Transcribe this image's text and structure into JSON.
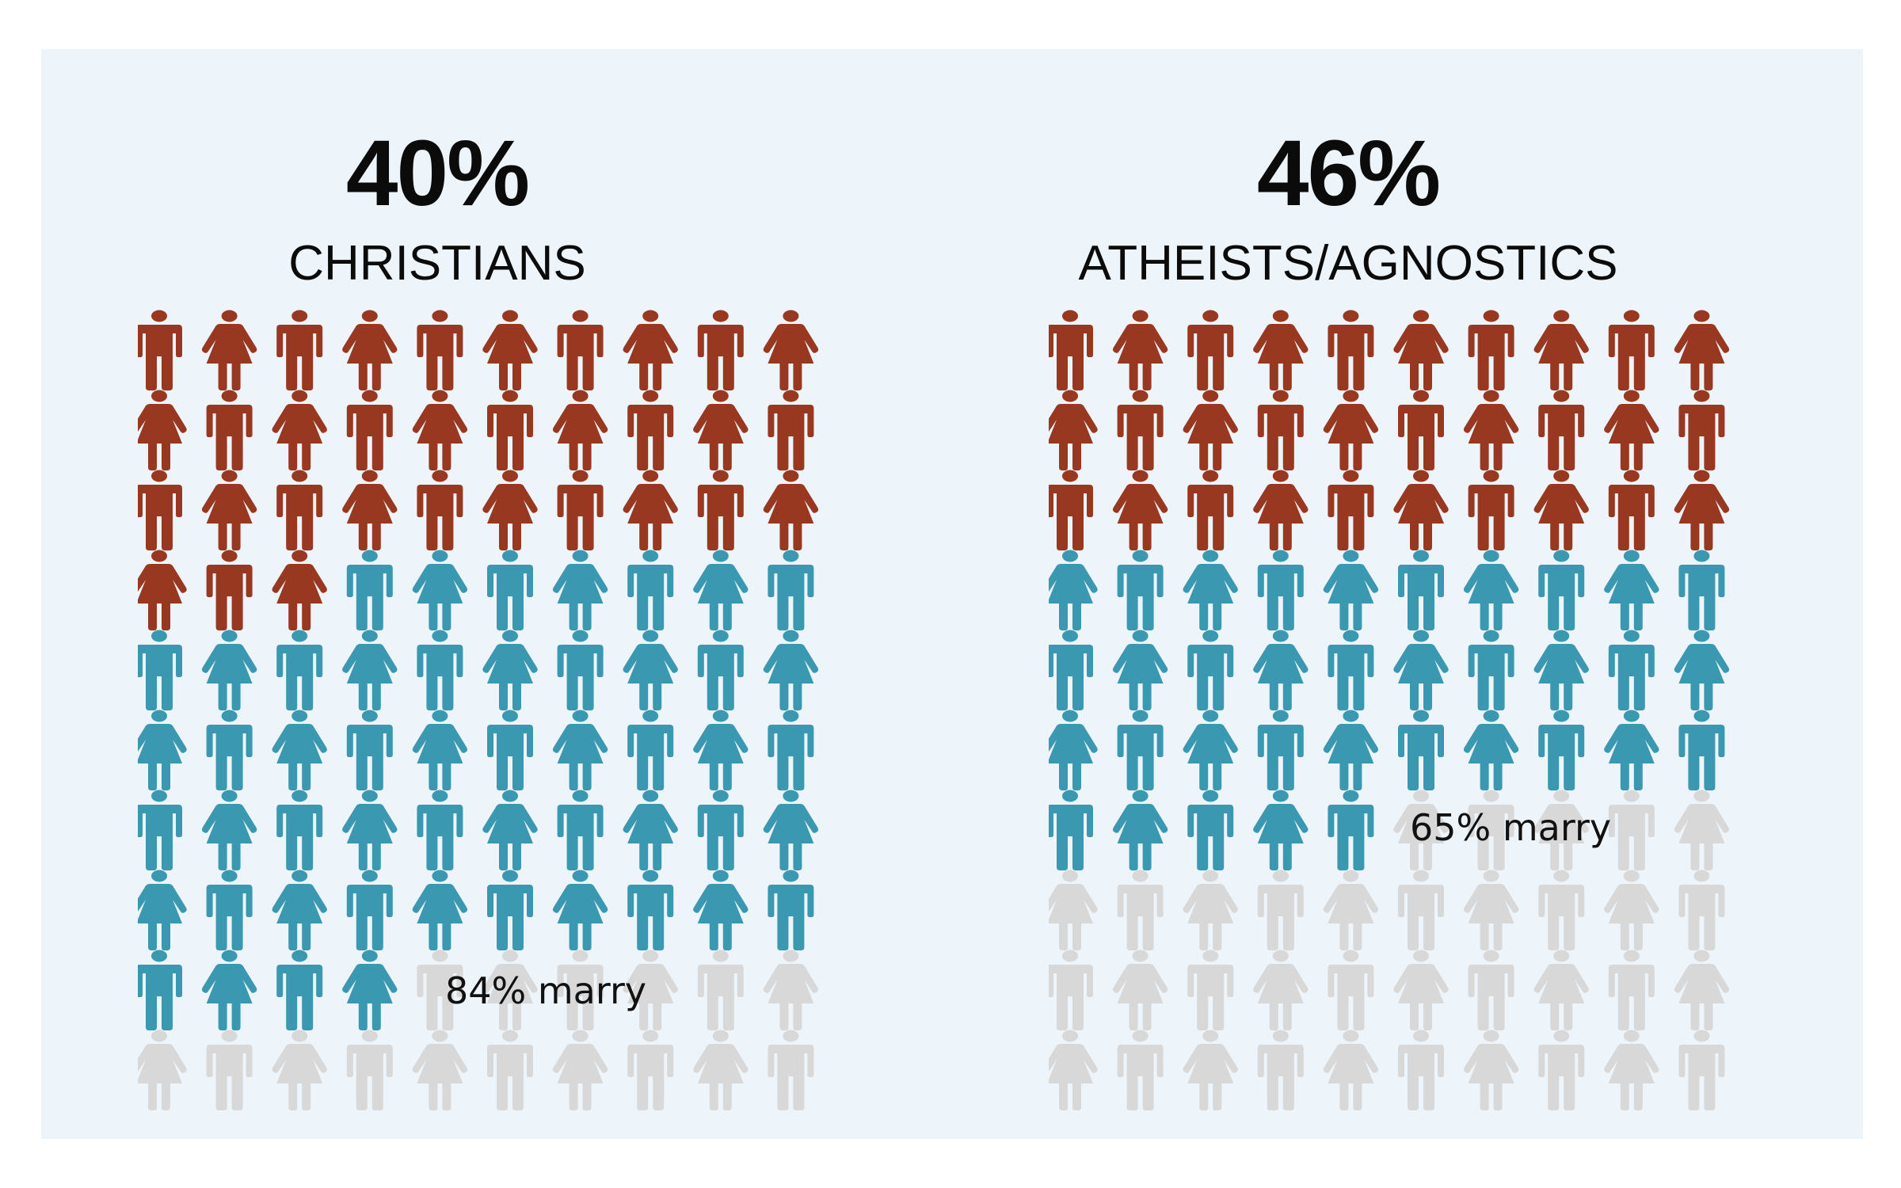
{
  "colors": {
    "background": "#edf5fb",
    "category_a": "#993821",
    "category_b": "#3a98b0",
    "remainder": "#d8d8d8"
  },
  "icon_names": [
    "male-figure-icon",
    "female-figure-icon"
  ],
  "chart_data": [
    {
      "type": "pictograph",
      "title": "40%",
      "subtitle": "CHRISTIANS",
      "units": 100,
      "grid": {
        "rows": 10,
        "columns": 10
      },
      "highlight_count": 33,
      "married_count": 84,
      "annotation": "84% marry"
    },
    {
      "type": "pictograph",
      "title": "46%",
      "subtitle": "ATHEISTS/AGNOSTICS",
      "units": 100,
      "grid": {
        "rows": 10,
        "columns": 10
      },
      "highlight_count": 30,
      "married_count": 65,
      "annotation": "65% marry"
    }
  ]
}
